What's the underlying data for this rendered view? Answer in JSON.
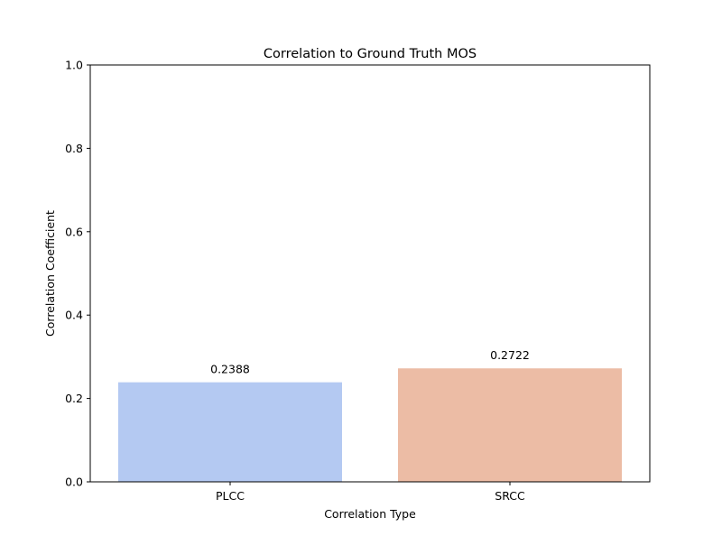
{
  "chart_data": {
    "type": "bar",
    "title": "Correlation to Ground Truth MOS",
    "xlabel": "Correlation Type",
    "ylabel": "Correlation Coefficient",
    "categories": [
      "PLCC",
      "SRCC"
    ],
    "values": [
      0.2388,
      0.2722
    ],
    "value_labels": [
      "0.2388",
      "0.2722"
    ],
    "colors": [
      "#b4c9f2",
      "#ecbca5"
    ],
    "ylim": [
      0,
      1.0
    ],
    "yticks": [
      0.0,
      0.2,
      0.4,
      0.6,
      0.8,
      1.0
    ],
    "ytick_labels": [
      "0.0",
      "0.2",
      "0.4",
      "0.6",
      "0.8",
      "1.0"
    ],
    "grid": false,
    "legend": "none"
  }
}
